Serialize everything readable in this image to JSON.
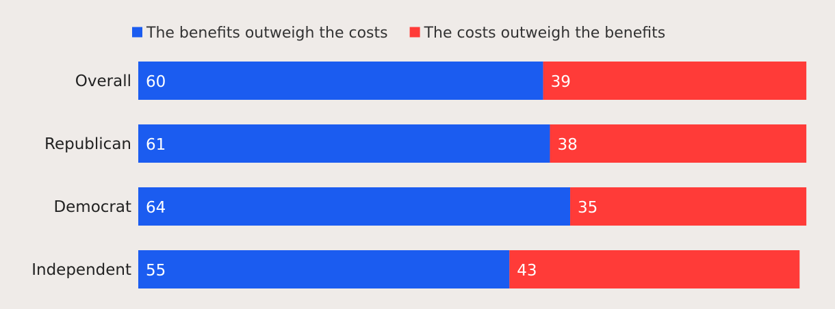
{
  "chart_data": {
    "type": "bar",
    "orientation": "horizontal",
    "stacked": true,
    "categories": [
      "Overall",
      "Republican",
      "Democrat",
      "Independent"
    ],
    "series": [
      {
        "name": "The benefits outweigh the costs",
        "values": [
          60,
          61,
          64,
          55
        ],
        "color": "#1b5cf0"
      },
      {
        "name": "The costs outweigh the benefits",
        "values": [
          39,
          38,
          35,
          43
        ],
        "color": "#ff3b38"
      }
    ],
    "xlim": [
      0,
      100
    ],
    "legend_position": "top",
    "grid": false,
    "label_color": "#ffffff",
    "background": "#efebe8"
  }
}
